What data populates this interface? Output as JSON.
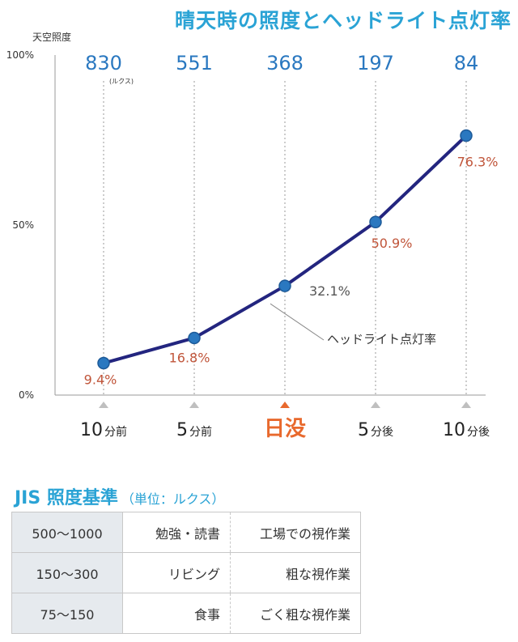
{
  "header": {
    "title": "晴天時の照度とヘッドライト点灯率"
  },
  "chart_data": {
    "type": "line",
    "title": "晴天時の照度とヘッドライト点灯率",
    "ylabel": "天空照度",
    "ylim": [
      0,
      100
    ],
    "yticks": [
      "0%",
      "50%",
      "100%"
    ],
    "categories": [
      "10分前",
      "5分前",
      "日没",
      "5分後",
      "10分後"
    ],
    "category_labels": [
      {
        "num": "10",
        "unit": "分前"
      },
      {
        "num": "5",
        "unit": "分前"
      },
      {
        "num": "日没",
        "unit": ""
      },
      {
        "num": "5",
        "unit": "分後"
      },
      {
        "num": "10",
        "unit": "分後"
      }
    ],
    "highlight_index": 2,
    "illuminance": [
      "830",
      "551",
      "368",
      "197",
      "84"
    ],
    "illuminance_unit": "(ルクス)",
    "series": [
      {
        "name": "ヘッドライト点灯率",
        "values": [
          9.4,
          16.8,
          32.1,
          50.9,
          76.3
        ],
        "labels": [
          "9.4%",
          "16.8%",
          "32.1%",
          "50.9%",
          "76.3%"
        ]
      }
    ],
    "annotation": "ヘッドライト点灯率",
    "colors": {
      "line": "#23257f",
      "marker": "#2a78c0",
      "value_label": "#c0553a",
      "value_label_plain": "#555555",
      "illuminance": "#2a78c0",
      "highlight": "#e8692d",
      "triangle": "#bfbfbf"
    }
  },
  "jis": {
    "title": "JIS 照度基準",
    "subtitle": "（単位：ルクス）",
    "rows": [
      {
        "range": "500〜1000",
        "place": "勉強・読書",
        "work": "工場での視作業"
      },
      {
        "range": "150〜300",
        "place": "リビング",
        "work": "粗な視作業"
      },
      {
        "range": "75〜150",
        "place": "食事",
        "work": "ごく粗な視作業"
      }
    ]
  }
}
